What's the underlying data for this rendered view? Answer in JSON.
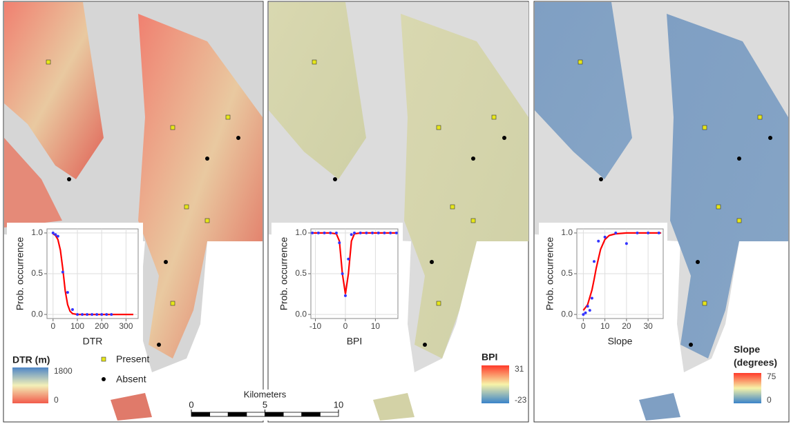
{
  "chart_data": [
    {
      "type": "line",
      "x_label": "DTR",
      "y_label": "Prob. occurrence",
      "xlim": [
        -25,
        350
      ],
      "ylim": [
        -0.05,
        1.05
      ],
      "xticks": [
        0,
        100,
        200,
        300
      ],
      "yticks": [
        {
          "value": 0,
          "label": "0.0"
        },
        {
          "value": 0.5,
          "label": "0.5"
        },
        {
          "value": 1,
          "label": "1.0"
        }
      ],
      "series": [
        {
          "style": "line",
          "color": "#ff0000",
          "x": [
            0,
            10,
            20,
            30,
            40,
            50,
            60,
            70,
            80,
            100,
            150,
            200,
            250,
            300,
            330
          ],
          "values": [
            0.99,
            0.97,
            0.92,
            0.79,
            0.56,
            0.29,
            0.12,
            0.04,
            0.01,
            0,
            0,
            0,
            0,
            0,
            0
          ]
        },
        {
          "style": "markers",
          "color": "#3333ff",
          "x": [
            0,
            10,
            20,
            40,
            60,
            80,
            100,
            120,
            140,
            160,
            180,
            200,
            220,
            240
          ],
          "values": [
            1,
            0.98,
            0.96,
            0.52,
            0.27,
            0.06,
            0,
            0,
            0,
            0,
            0,
            0,
            0,
            0
          ]
        }
      ]
    },
    {
      "type": "line",
      "x_label": "BPI",
      "y_label": "Prob. occurrence",
      "xlim": [
        -11.5,
        17.5
      ],
      "ylim": [
        -0.05,
        1.05
      ],
      "xticks": [
        -10,
        0,
        10
      ],
      "yticks": [
        {
          "value": 0,
          "label": "0.0"
        },
        {
          "value": 0.5,
          "label": "0.5"
        },
        {
          "value": 1,
          "label": "1.0"
        }
      ],
      "series": [
        {
          "style": "line",
          "color": "#ff0000",
          "x": [
            -11,
            -5,
            -3,
            -2,
            -1,
            0,
            1,
            2,
            3,
            5,
            17
          ],
          "values": [
            1,
            1,
            0.99,
            0.9,
            0.5,
            0.25,
            0.5,
            0.9,
            0.99,
            1,
            1
          ]
        },
        {
          "style": "markers",
          "color": "#3333ff",
          "x": [
            -11,
            -9,
            -7,
            -5,
            -3,
            -2,
            -1,
            0,
            1,
            2,
            3,
            5,
            7,
            9,
            11,
            13,
            15,
            17
          ],
          "values": [
            1,
            1,
            1,
            1,
            1,
            0.88,
            0.5,
            0.23,
            0.68,
            0.98,
            1,
            1,
            1,
            1,
            1,
            1,
            1,
            1
          ]
        }
      ]
    },
    {
      "type": "line",
      "x_label": "Slope",
      "y_label": "Prob. occurrence",
      "xlim": [
        -3,
        37
      ],
      "ylim": [
        -0.05,
        1.05
      ],
      "xticks": [
        0,
        10,
        20,
        30
      ],
      "yticks": [
        {
          "value": 0,
          "label": "0.0"
        },
        {
          "value": 0.5,
          "label": "0.5"
        },
        {
          "value": 1,
          "label": "1.0"
        }
      ],
      "series": [
        {
          "style": "line",
          "color": "#ff0000",
          "x": [
            0,
            2,
            4,
            5,
            6,
            8,
            10,
            12,
            15,
            20,
            30,
            36
          ],
          "values": [
            0.05,
            0.12,
            0.3,
            0.43,
            0.57,
            0.8,
            0.92,
            0.97,
            0.99,
            1,
            1,
            1
          ]
        },
        {
          "style": "markers",
          "color": "#3333ff",
          "x": [
            0,
            1,
            2,
            3,
            4,
            5,
            7,
            10,
            15,
            20,
            25,
            30,
            35
          ],
          "values": [
            0,
            0.02,
            0.1,
            0.05,
            0.2,
            0.65,
            0.9,
            0.95,
            1,
            0.87,
            1,
            1,
            1
          ]
        }
      ]
    }
  ],
  "legends": [
    {
      "title_lines": [
        "DTR (m)"
      ],
      "max": 1800,
      "min": 0,
      "colors": [
        "#4f86c6",
        "#f3f0b8",
        "#f25b4b"
      ]
    },
    {
      "title_lines": [
        "BPI"
      ],
      "max": 31,
      "min": -23,
      "colors": [
        "#ff3a2a",
        "#f7f3a8",
        "#3a83c9"
      ]
    },
    {
      "title_lines": [
        "Slope",
        "(degrees)"
      ],
      "max": 75,
      "min": 0,
      "colors": [
        "#ff3a2a",
        "#f7f3a8",
        "#3a83c9"
      ]
    }
  ],
  "occurrence_legend": {
    "present": "Present",
    "absent": "Absent"
  },
  "scale_bar": {
    "title": "Kilometers",
    "ticks": [
      0,
      5,
      10
    ]
  }
}
